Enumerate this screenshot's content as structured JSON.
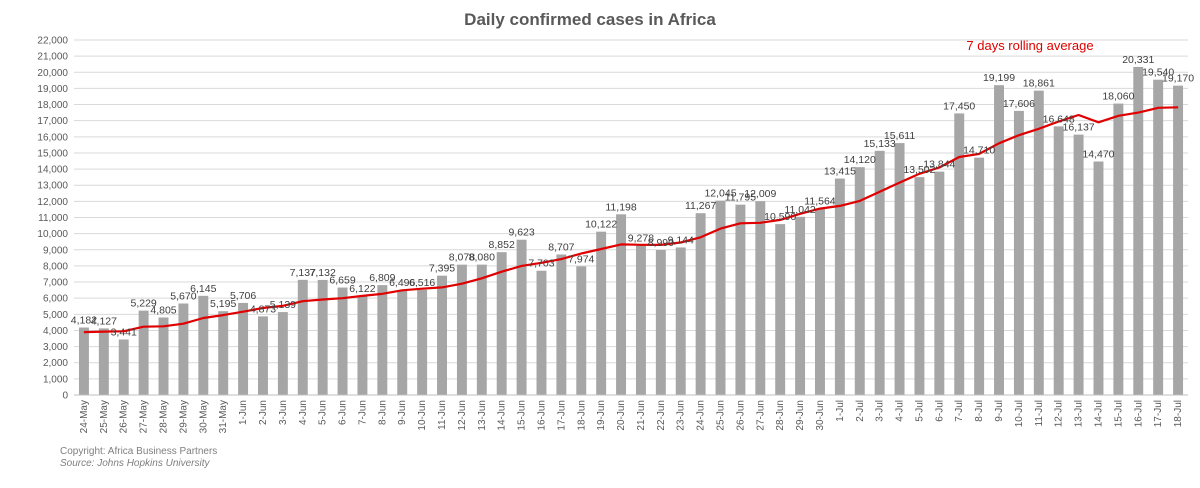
{
  "chart_data": {
    "type": "bar",
    "title": "Daily confirmed cases in Africa",
    "xlabel": "",
    "ylabel": "",
    "ylim": [
      0,
      22000
    ],
    "ytick_step": 1000,
    "grid": true,
    "categories": [
      "24-May",
      "25-May",
      "26-May",
      "27-May",
      "28-May",
      "29-May",
      "30-May",
      "31-May",
      "1-Jun",
      "2-Jun",
      "3-Jun",
      "4-Jun",
      "5-Jun",
      "6-Jun",
      "7-Jun",
      "8-Jun",
      "9-Jun",
      "10-Jun",
      "11-Jun",
      "12-Jun",
      "13-Jun",
      "14-Jun",
      "15-Jun",
      "16-Jun",
      "17-Jun",
      "18-Jun",
      "19-Jun",
      "20-Jun",
      "21-Jun",
      "22-Jun",
      "23-Jun",
      "24-Jun",
      "25-Jun",
      "26-Jun",
      "27-Jun",
      "28-Jun",
      "29-Jun",
      "30-Jun",
      "1-Jul",
      "2-Jul",
      "3-Jul",
      "4-Jul",
      "5-Jul",
      "6-Jul",
      "7-Jul",
      "8-Jul",
      "9-Jul",
      "10-Jul",
      "11-Jul",
      "12-Jul",
      "13-Jul",
      "14-Jul",
      "15-Jul",
      "16-Jul",
      "17-Jul",
      "18-Jul"
    ],
    "series": [
      {
        "type": "bar",
        "color": "#a6a6a6",
        "values": [
          4182,
          4127,
          3441,
          5229,
          4805,
          5670,
          6145,
          5195,
          5706,
          4873,
          5139,
          7137,
          7132,
          6659,
          6122,
          6809,
          6496,
          6516,
          7395,
          8078,
          8080,
          8852,
          9623,
          7703,
          8707,
          7974,
          10122,
          11198,
          9278,
          8990,
          9144,
          11267,
          12045,
          11795,
          12009,
          10590,
          11042,
          11564,
          13415,
          14120,
          15133,
          15611,
          13502,
          13844,
          17450,
          14710,
          19199,
          17606,
          18861,
          16648,
          16137,
          14470,
          18060,
          20331,
          19540,
          19170
        ],
        "labels": [
          "4,182",
          "4,127",
          "3,441",
          "5,229",
          "4,805",
          "5,670",
          "6,145",
          "5,195",
          "5,706",
          "4,873",
          "5,139",
          "7,137",
          "7,132",
          "6,659",
          "6,122",
          "6,809",
          "6,496",
          "6,516",
          "7,395",
          "8,078",
          "8,080",
          "8,852",
          "9,623",
          "7,703",
          "8,707",
          "7,974",
          "10,122",
          "11,198",
          "9,278",
          "8,990",
          "9,144",
          "11,267",
          "12,045",
          "11,795",
          "12,009",
          "10,590",
          "11,042",
          "11,564",
          "13,415",
          "14,120",
          "15,133",
          "15,611",
          "13,502",
          "13,844",
          "17,450",
          "14,710",
          "19,199",
          "17,606",
          "18,861",
          "16,648",
          "16,137",
          "14,470",
          "18,060",
          "20,331",
          "19,540",
          "19,170"
        ]
      },
      {
        "name": "7 days rolling average",
        "type": "line",
        "color": "#e00000",
        "values": [
          3900,
          3930,
          3950,
          4230,
          4260,
          4420,
          4770,
          4950,
          5160,
          5390,
          5530,
          5810,
          5920,
          6000,
          6140,
          6270,
          6490,
          6590,
          6670,
          6900,
          7230,
          7640,
          8000,
          8190,
          8420,
          8770,
          9050,
          9330,
          9310,
          9300,
          9450,
          9770,
          10310,
          10640,
          10670,
          10850,
          11230,
          11550,
          11720,
          12030,
          12600,
          13160,
          13710,
          14100,
          14750,
          14940,
          15600,
          16100,
          16500,
          16950,
          17350,
          16900,
          17300,
          17500,
          17800,
          17830
        ]
      }
    ],
    "annotation": "7 days rolling average"
  },
  "footer": {
    "copyright": "Copyright: Africa Business Partners",
    "source": "Source: Johns Hopkins University"
  }
}
